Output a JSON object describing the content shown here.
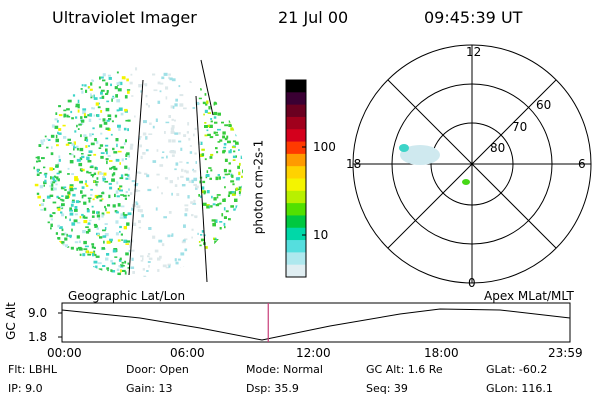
{
  "header": {
    "instrument": "Ultraviolet Imager",
    "date": "21 Jul 00",
    "time": "09:45:39 UT"
  },
  "colorbar": {
    "unit_label": "photon cm-2s-1",
    "ticks": [
      "100",
      "10"
    ],
    "colors": [
      "#000000",
      "#3a0033",
      "#6a0020",
      "#a0001c",
      "#d4001c",
      "#ff3a00",
      "#ff9a00",
      "#ffd200",
      "#f4f400",
      "#b8f000",
      "#52e000",
      "#00c840",
      "#00d8a8",
      "#55dede",
      "#aee8ee",
      "#e0eef2"
    ]
  },
  "polar_plot": {
    "mlt_labels": {
      "top": "12",
      "right": "6",
      "left": "18",
      "bottom": "0"
    },
    "lat_labels": [
      "60",
      "70",
      "80"
    ]
  },
  "timeline": {
    "left_title": "Geographic Lat/Lon",
    "right_title": "Apex MLat/MLT",
    "ylabel": "GC Alt",
    "y_ticks": [
      "9.0",
      "1.8"
    ],
    "x_ticks": [
      "00:00",
      "06:00",
      "12:00",
      "18:00",
      "23:59"
    ],
    "current_time_fraction": 0.406,
    "current_marker_color": "#c83c78"
  },
  "info": {
    "col1": [
      "Flt: LBHL",
      "IP:  9.0"
    ],
    "col2": [
      "Door: Open",
      "Gain: 13"
    ],
    "col3": [
      "Mode: Normal",
      "Dsp:   35.9"
    ],
    "col4": [
      "GC Alt: 1.6 Re",
      "Seq: 39"
    ],
    "col5": [
      "GLat: -60.2",
      "GLon: 116.1"
    ]
  }
}
